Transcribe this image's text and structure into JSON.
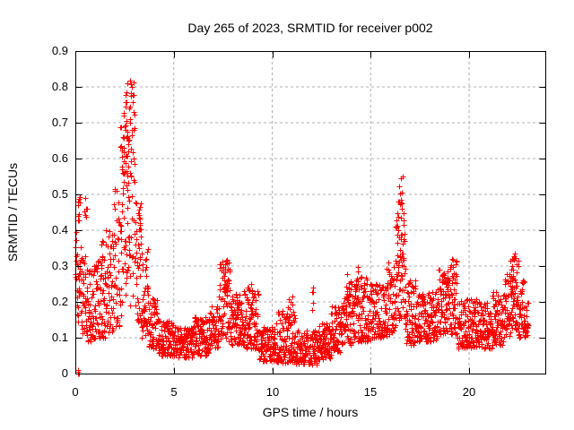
{
  "title": "Day 265 of 2023, SRMTID for receiver p002",
  "chart_data": {
    "type": "scatter",
    "title": "Day 265 of 2023, SRMTID for receiver p002",
    "xlabel": "GPS time / hours",
    "ylabel": "SRMTID / TECUs",
    "xlim": [
      0,
      23.87
    ],
    "ylim": [
      0,
      0.9
    ],
    "xticks": {
      "values": [
        0,
        5,
        10,
        15,
        20
      ],
      "labels": [
        "0",
        "5",
        "10",
        "15",
        "20"
      ]
    },
    "yticks": {
      "values": [
        0,
        0.1,
        0.2,
        0.3,
        0.4,
        0.5,
        0.6,
        0.7,
        0.8,
        0.9
      ],
      "labels": [
        "0",
        "0.1",
        "0.2",
        "0.3",
        "0.4",
        "0.5",
        "0.6",
        "0.7",
        "0.8",
        "0.9"
      ]
    },
    "grid": true,
    "legend": "none",
    "marker": {
      "shape": "plus",
      "size": 7,
      "color": "#ff0000"
    },
    "colors": {
      "marker": "#ff0000",
      "grid": "#b0b0b0",
      "axis": "#000000",
      "background": "#ffffff",
      "text": "#000000"
    },
    "peaks_read_from_plot": [
      {
        "x": 0.4,
        "y": 0.5
      },
      {
        "x": 2.6,
        "y": 0.82
      },
      {
        "x": 2.95,
        "y": 0.8
      },
      {
        "x": 7.65,
        "y": 0.33
      },
      {
        "x": 16.5,
        "y": 0.56
      },
      {
        "x": 19.2,
        "y": 0.33
      },
      {
        "x": 22.3,
        "y": 0.33
      }
    ],
    "outlier_points": [
      [
        0.12,
        0.0
      ],
      [
        0.15,
        0.005
      ],
      [
        0.17,
        0.0
      ],
      [
        0.14,
        0.01
      ]
    ],
    "points_per_hour": 120,
    "render_seed": 20230265,
    "envelope_segments": [
      [
        0.0,
        0.1,
        0.14,
        0.4,
        1.0
      ],
      [
        0.1,
        0.35,
        0.13,
        0.38,
        1.2
      ],
      [
        0.35,
        0.6,
        0.11,
        0.34,
        1.3
      ],
      [
        0.6,
        1.0,
        0.09,
        0.3,
        1.4
      ],
      [
        1.0,
        1.5,
        0.1,
        0.33,
        1.4
      ],
      [
        1.5,
        1.95,
        0.11,
        0.4,
        1.3
      ],
      [
        1.95,
        2.25,
        0.13,
        0.52,
        1.2
      ],
      [
        2.25,
        2.6,
        0.16,
        0.7,
        1.0
      ],
      [
        2.6,
        3.05,
        0.18,
        0.78,
        1.0
      ],
      [
        3.05,
        3.35,
        0.14,
        0.48,
        1.2
      ],
      [
        3.35,
        3.7,
        0.1,
        0.35,
        1.4
      ],
      [
        3.7,
        4.2,
        0.07,
        0.22,
        1.4
      ],
      [
        4.2,
        5.0,
        0.05,
        0.15,
        1.3
      ],
      [
        5.0,
        6.0,
        0.045,
        0.13,
        1.2
      ],
      [
        6.0,
        6.8,
        0.05,
        0.16,
        1.3
      ],
      [
        6.8,
        7.3,
        0.07,
        0.2,
        1.3
      ],
      [
        7.3,
        7.9,
        0.09,
        0.32,
        1.1
      ],
      [
        7.9,
        8.6,
        0.08,
        0.23,
        1.3
      ],
      [
        8.6,
        9.3,
        0.07,
        0.24,
        1.3
      ],
      [
        9.3,
        10.2,
        0.035,
        0.13,
        1.2
      ],
      [
        10.2,
        11.2,
        0.03,
        0.18,
        1.3
      ],
      [
        11.2,
        12.3,
        0.025,
        0.12,
        1.2
      ],
      [
        12.3,
        13.0,
        0.04,
        0.14,
        1.2
      ],
      [
        13.0,
        13.6,
        0.06,
        0.19,
        1.2
      ],
      [
        13.6,
        14.2,
        0.08,
        0.26,
        1.2
      ],
      [
        14.2,
        15.0,
        0.09,
        0.27,
        1.3
      ],
      [
        15.0,
        15.8,
        0.1,
        0.25,
        1.3
      ],
      [
        15.8,
        16.25,
        0.11,
        0.31,
        1.2
      ],
      [
        16.25,
        16.75,
        0.14,
        0.45,
        1.0
      ],
      [
        16.75,
        17.3,
        0.08,
        0.26,
        1.3
      ],
      [
        17.3,
        18.4,
        0.09,
        0.23,
        1.3
      ],
      [
        18.4,
        19.0,
        0.11,
        0.3,
        1.2
      ],
      [
        19.0,
        19.4,
        0.11,
        0.32,
        1.2
      ],
      [
        19.4,
        20.6,
        0.07,
        0.21,
        1.3
      ],
      [
        20.6,
        21.2,
        0.07,
        0.2,
        1.3
      ],
      [
        21.2,
        21.75,
        0.08,
        0.23,
        1.2
      ],
      [
        21.75,
        22.1,
        0.1,
        0.28,
        1.1
      ],
      [
        22.1,
        22.5,
        0.12,
        0.33,
        1.0
      ],
      [
        22.5,
        22.8,
        0.1,
        0.27,
        1.1
      ],
      [
        22.8,
        23.0,
        0.1,
        0.2,
        1.2
      ]
    ],
    "dense_clusters": [
      [
        0.12,
        0.32,
        0.42,
        0.495,
        10
      ],
      [
        0.38,
        0.58,
        0.43,
        0.505,
        7
      ],
      [
        1.2,
        1.45,
        0.3,
        0.375,
        6
      ],
      [
        2.3,
        2.8,
        0.55,
        0.73,
        26
      ],
      [
        2.55,
        3.0,
        0.74,
        0.825,
        13
      ],
      [
        3.1,
        3.3,
        0.35,
        0.47,
        8
      ],
      [
        7.5,
        7.8,
        0.22,
        0.335,
        14
      ],
      [
        8.2,
        8.5,
        0.15,
        0.215,
        8
      ],
      [
        8.7,
        9.05,
        0.15,
        0.25,
        9
      ],
      [
        10.7,
        11.1,
        0.14,
        0.22,
        8
      ],
      [
        11.95,
        12.1,
        0.16,
        0.24,
        5
      ],
      [
        13.8,
        14.0,
        0.21,
        0.285,
        6
      ],
      [
        14.3,
        14.55,
        0.22,
        0.31,
        6
      ],
      [
        16.3,
        16.7,
        0.28,
        0.43,
        16
      ],
      [
        16.38,
        16.62,
        0.44,
        0.565,
        12
      ],
      [
        18.6,
        18.9,
        0.2,
        0.3,
        8
      ],
      [
        19.1,
        19.3,
        0.22,
        0.33,
        6
      ],
      [
        21.3,
        21.6,
        0.14,
        0.22,
        6
      ],
      [
        22.05,
        22.45,
        0.2,
        0.335,
        14
      ]
    ]
  }
}
